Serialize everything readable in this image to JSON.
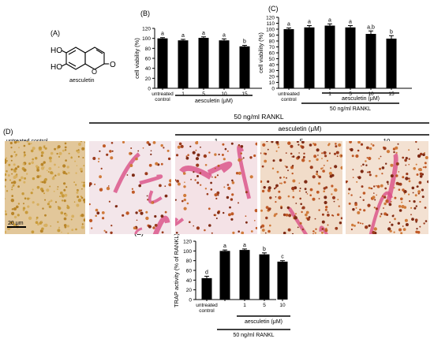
{
  "panels": {
    "A": "(A)",
    "B": "(B)",
    "C": "(C)",
    "D": "(D)",
    "E": "(E)"
  },
  "structure": {
    "label": "aesculetin",
    "oh1": "HO",
    "oh2": "HO",
    "o_ring": "O",
    "o_carbonyl": "O"
  },
  "micrographs": {
    "group_label": "50 ng/ml  RANKL",
    "treatment_label": "aesculetin (μM)",
    "control_label": "untreated control",
    "dose_labels": [
      "1",
      "5",
      "10"
    ],
    "scale_bar": "20 μm",
    "tiles": [
      {
        "name": "untreated-control",
        "bg": "#e2c79a"
      },
      {
        "name": "rankl-only",
        "bg": "#f3e6ea"
      },
      {
        "name": "aesculetin-1",
        "bg": "#f4e2e6"
      },
      {
        "name": "aesculetin-5",
        "bg": "#f1dcc9"
      },
      {
        "name": "aesculetin-10",
        "bg": "#f3e1d2"
      }
    ]
  },
  "chart_data": [
    {
      "panel": "B",
      "type": "bar",
      "ylabel": "cell viability (%)",
      "ylim": [
        0,
        120
      ],
      "yticks": [
        0,
        20,
        40,
        60,
        80,
        100,
        120
      ],
      "categories": [
        "untreated\ncontrol",
        "1",
        "5",
        "10",
        "15"
      ],
      "values": [
        100,
        96,
        101,
        96,
        84
      ],
      "errors": [
        1.5,
        2,
        2,
        3,
        2
      ],
      "letters": [
        "a",
        "a",
        "a",
        "a",
        "b"
      ],
      "xgroup": "aesculetin (μM)",
      "bar_color": "#000000"
    },
    {
      "panel": "C",
      "type": "bar",
      "ylabel": "cell viability (%)",
      "ylim": [
        0,
        120
      ],
      "yticks": [
        0,
        10,
        20,
        30,
        40,
        50,
        60,
        70,
        80,
        90,
        100,
        110,
        120
      ],
      "categories": [
        "untreated\ncontrol",
        "",
        "1",
        "5",
        "10",
        "15"
      ],
      "values": [
        100,
        103,
        106,
        103,
        92,
        84
      ],
      "errors": [
        2,
        3,
        3,
        3,
        5,
        5
      ],
      "letters": [
        "a",
        "a",
        "a",
        "a",
        "a,b",
        "b"
      ],
      "xgroup": "aesculetin (μM)",
      "xgroup2": "50 ng/ml  RANKL",
      "bar_color": "#000000"
    },
    {
      "panel": "E",
      "type": "bar",
      "ylabel": "TRAP activity (% of RANKL)",
      "ylim": [
        0,
        120
      ],
      "yticks": [
        0,
        20,
        40,
        60,
        80,
        100,
        120
      ],
      "categories": [
        "untreated\ncontrol",
        "",
        "1",
        "5",
        "10"
      ],
      "values": [
        44,
        100,
        102,
        93,
        78
      ],
      "errors": [
        4,
        2,
        2,
        3,
        2
      ],
      "letters": [
        "d",
        "a",
        "a",
        "b",
        "c"
      ],
      "xgroup": "aesculetin (μM)",
      "xgroup2": "50 ng/ml RANKL",
      "bar_color": "#000000"
    }
  ]
}
